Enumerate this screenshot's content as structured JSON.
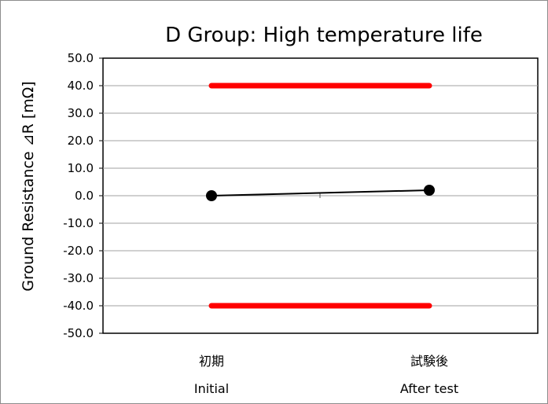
{
  "chart_data": {
    "type": "line",
    "title": "D Group: High temperature life",
    "ylabel": "Ground Resistance ⊿R [mΩ]",
    "xlabel": "",
    "categories": [
      "初期",
      "試験後"
    ],
    "category_sublabels": [
      "Initial",
      "After test"
    ],
    "ylim": [
      -50,
      50
    ],
    "ytick_step": 10,
    "ytick_labels": [
      "50.0",
      "40.0",
      "30.0",
      "20.0",
      "10.0",
      "0.0",
      "-10.0",
      "-20.0",
      "-30.0",
      "-40.0",
      "-50.0"
    ],
    "grid": true,
    "legend": "none",
    "series": [
      {
        "values": [
          0.0,
          2.0
        ],
        "color": "#000000",
        "marker": "circle"
      }
    ],
    "limit_lines": [
      {
        "y": 40,
        "color": "#ff0000"
      },
      {
        "y": -40,
        "color": "#ff0000"
      }
    ]
  }
}
